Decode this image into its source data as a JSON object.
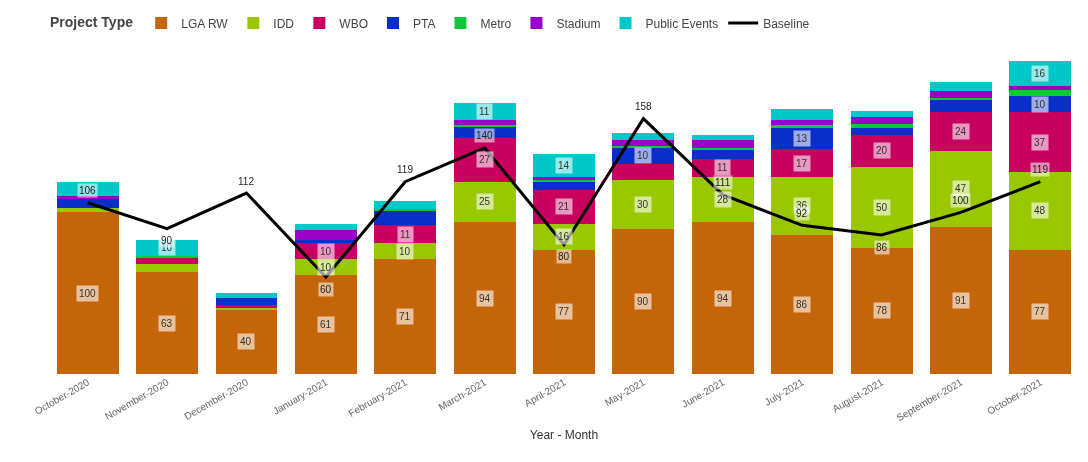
{
  "chart_data": {
    "type": "bar",
    "stacked": true,
    "xlabel": "Year - Month",
    "legend_title": "Project Type",
    "legend": "top left",
    "grid": false,
    "tick_labels": "x",
    "categories": [
      "October-2020",
      "November-2020",
      "December-2020",
      "January-2021",
      "February-2021",
      "March-2021",
      "April-2021",
      "May-2021",
      "June-2021",
      "July-2021",
      "August-2021",
      "September-2021",
      "October-2021"
    ],
    "series": [
      {
        "name": "LGA RW",
        "color": "#c5650a",
        "values": [
          100,
          63,
          40,
          61,
          71,
          94,
          77,
          90,
          94,
          86,
          78,
          91,
          77
        ],
        "value_labels": [
          "100",
          "63",
          "40",
          "61",
          "71",
          "94",
          "77",
          "90",
          "94",
          "86",
          "78",
          "91",
          "77"
        ]
      },
      {
        "name": "IDD",
        "color": "#99c800",
        "values": [
          3,
          5,
          1,
          10,
          10,
          25,
          16,
          30,
          28,
          36,
          50,
          47,
          48
        ],
        "value_labels": [
          null,
          null,
          null,
          "10",
          "10",
          "25",
          "16",
          "30",
          "28",
          "36",
          "50",
          "47",
          "48"
        ]
      },
      {
        "name": "WBO",
        "color": "#c8005f",
        "values": [
          0,
          4,
          2,
          10,
          11,
          27,
          21,
          10,
          11,
          17,
          20,
          24,
          37
        ],
        "value_labels": [
          null,
          null,
          null,
          "10",
          "11",
          "27",
          "21",
          null,
          "11",
          "17",
          "20",
          "24",
          "37"
        ]
      },
      {
        "name": "PTA",
        "color": "#0a2fc8",
        "values": [
          5,
          0,
          4,
          2,
          9,
          7,
          5,
          10,
          6,
          13,
          4,
          8,
          10
        ],
        "value_labels": [
          null,
          null,
          null,
          null,
          null,
          null,
          null,
          "10",
          null,
          "13",
          null,
          null,
          "10"
        ]
      },
      {
        "name": "Metro",
        "color": "#0ec83c",
        "values": [
          0,
          1,
          0,
          0,
          1,
          1,
          1,
          1,
          1,
          2,
          3,
          1,
          4
        ]
      },
      {
        "name": "Stadium",
        "color": "#9b00c8",
        "values": [
          2,
          0,
          0,
          6,
          0,
          3,
          2,
          4,
          5,
          3,
          4,
          4,
          2
        ]
      },
      {
        "name": "Public Events",
        "color": "#00c8c8",
        "values": [
          9,
          10,
          3,
          4,
          5,
          11,
          14,
          4,
          3,
          7,
          4,
          6,
          16
        ],
        "value_labels": [
          null,
          "10",
          null,
          null,
          null,
          "11",
          "14",
          null,
          null,
          null,
          null,
          null,
          "16"
        ]
      },
      {
        "name": "Baseline",
        "type": "line",
        "color": "#000000",
        "line_style": "solid",
        "marker": "none",
        "values": [
          106,
          90,
          112,
          60,
          119,
          140,
          80,
          158,
          111,
          92,
          86,
          100,
          119
        ],
        "value_labels": [
          "106",
          "90",
          "112",
          "60",
          "119",
          "140",
          "80",
          "158",
          "111",
          "92",
          "86",
          "100",
          "119"
        ]
      }
    ]
  }
}
